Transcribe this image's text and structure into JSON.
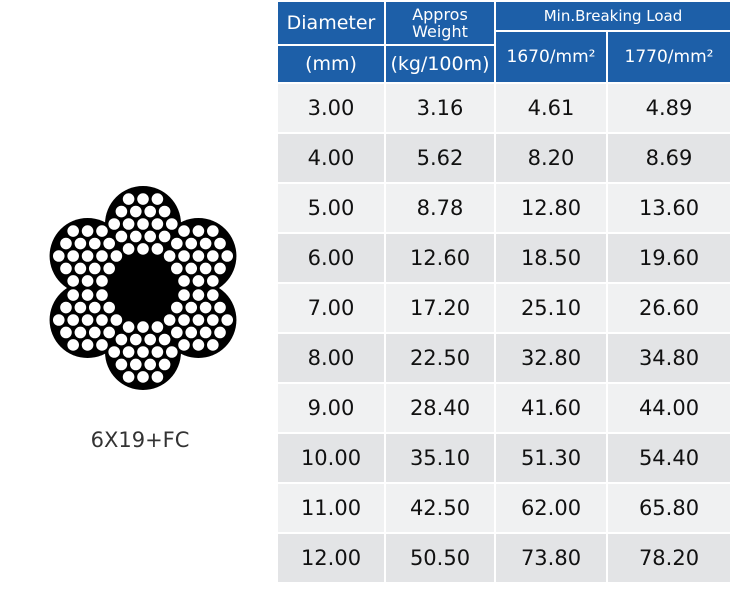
{
  "diagram": {
    "caption": "6X19+FC"
  },
  "table": {
    "headers": {
      "diameter": "Diameter",
      "diameter_unit": "(mm)",
      "weight": "Appros Weight",
      "weight_line1": "Appros",
      "weight_line2": "Weight",
      "weight_unit": "(kg/100m)",
      "breaking_load": "Min.Breaking Load",
      "grade1": "1670/mm²",
      "grade2": "1770/mm²"
    },
    "rows": [
      [
        "3.00",
        "3.16",
        "4.61",
        "4.89"
      ],
      [
        "4.00",
        "5.62",
        "8.20",
        "8.69"
      ],
      [
        "5.00",
        "8.78",
        "12.80",
        "13.60"
      ],
      [
        "6.00",
        "12.60",
        "18.50",
        "19.60"
      ],
      [
        "7.00",
        "17.20",
        "25.10",
        "26.60"
      ],
      [
        "8.00",
        "22.50",
        "32.80",
        "34.80"
      ],
      [
        "9.00",
        "28.40",
        "41.60",
        "44.00"
      ],
      [
        "10.00",
        "35.10",
        "51.30",
        "54.40"
      ],
      [
        "11.00",
        "42.50",
        "62.00",
        "65.80"
      ],
      [
        "12.00",
        "50.50",
        "73.80",
        "78.20"
      ]
    ]
  }
}
